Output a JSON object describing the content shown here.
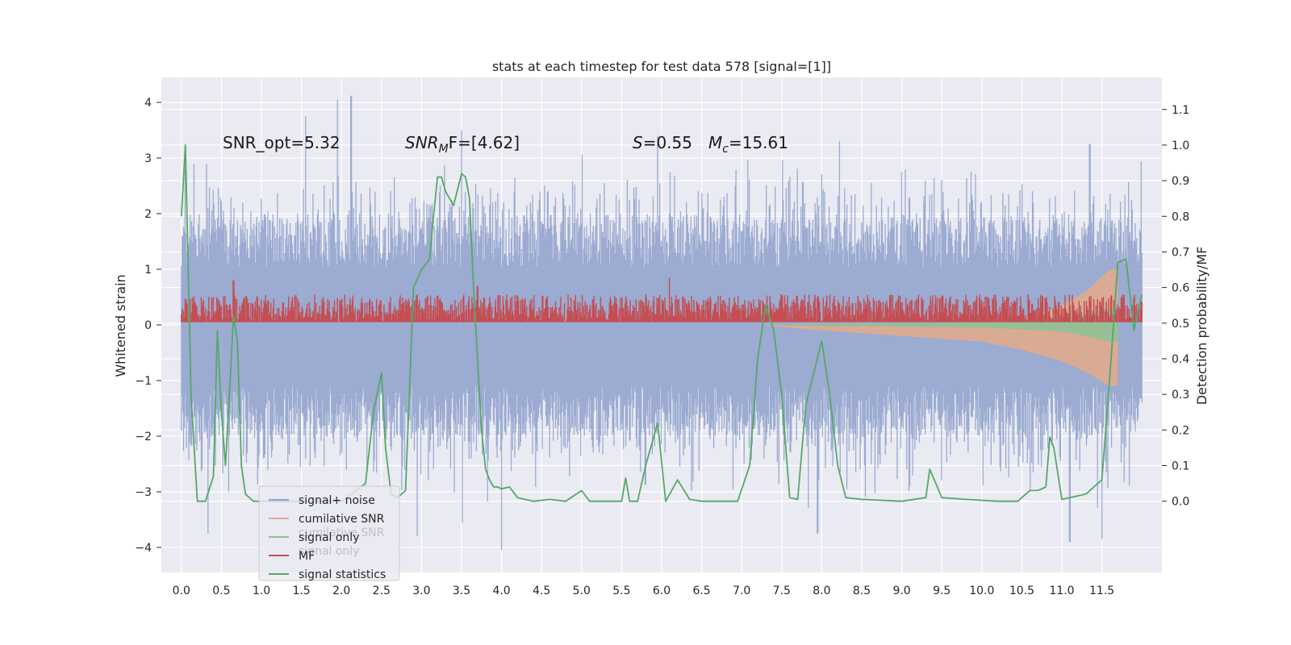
{
  "chart_data": {
    "type": "line",
    "title": "stats at each timestep for test data 578 [signal=[1]]",
    "xlabel": "",
    "ylabel": "Whitened strain",
    "ylabel_right": "Detection probability/MF",
    "xlim": [
      -0.25,
      12.25
    ],
    "ylim": [
      -4.45,
      4.45
    ],
    "ylim_right": [
      -0.2,
      1.19
    ],
    "x_ticks": [
      "0.0",
      "0.5",
      "1.0",
      "1.5",
      "2.0",
      "2.5",
      "3.0",
      "3.5",
      "4.0",
      "4.5",
      "5.0",
      "5.5",
      "6.0",
      "6.5",
      "7.0",
      "7.5",
      "8.0",
      "8.5",
      "9.0",
      "9.5",
      "10.0",
      "10.5",
      "11.0",
      "11.5"
    ],
    "y_ticks": [
      "4",
      "3",
      "2",
      "1",
      "0",
      "−1",
      "−2",
      "−3",
      "−4"
    ],
    "y_ticks_right": [
      "1.1",
      "1.0",
      "0.9",
      "0.8",
      "0.7",
      "0.6",
      "0.5",
      "0.4",
      "0.3",
      "0.2",
      "0.1",
      "0.0"
    ],
    "annotations": {
      "snr_opt": "SNR_opt=5.32",
      "snr_mf_main": "SNR",
      "snr_mf_sub": "M",
      "snr_mf_rest": "F=[4.62]",
      "s_main": "S",
      "s_rest": "=0.55",
      "mc_main": "M",
      "mc_sub": "c",
      "mc_rest": "=15.61"
    },
    "legend": {
      "placement": "lower-left",
      "entries": [
        {
          "label": "signal+ noise",
          "color": "#8da0cb"
        },
        {
          "label": "cumilative SNR",
          "color": "#e4a98a"
        },
        {
          "label": "signal only",
          "color": "#8fc196"
        },
        {
          "label": "MF",
          "color": "#c44e52"
        },
        {
          "label": "signal statistics",
          "color": "#55a868"
        }
      ],
      "ghost_labels": [
        "cumilative SNR",
        "signal only"
      ]
    },
    "series": [
      {
        "name": "signal+ noise",
        "color": "#8da0cb",
        "x_range": [
          0.0,
          12.0
        ],
        "typical_positive_envelope": 1.9,
        "typical_negative_envelope": -2.0,
        "peaks": [
          {
            "x": 1.95,
            "y": 4.05
          },
          {
            "x": 2.12,
            "y": 4.12
          },
          {
            "x": 1.55,
            "y": 3.75
          },
          {
            "x": 3.5,
            "y": 3.5
          },
          {
            "x": 5.95,
            "y": 3.4
          },
          {
            "x": 11.35,
            "y": 3.25
          },
          {
            "x": 0.33,
            "y": -3.75
          },
          {
            "x": 2.95,
            "y": -3.8
          },
          {
            "x": 4.0,
            "y": -4.05
          },
          {
            "x": 11.1,
            "y": -3.9
          },
          {
            "x": 11.5,
            "y": -3.85
          },
          {
            "x": 7.95,
            "y": -3.75
          }
        ]
      },
      {
        "name": "MF",
        "color": "#c44e52",
        "x_range": [
          0.0,
          12.0
        ],
        "typical_range": [
          0.05,
          0.55
        ],
        "peaks": [
          {
            "x": 0.65,
            "y": 0.8
          },
          {
            "x": 6.1,
            "y": 0.85
          },
          {
            "x": 3.7,
            "y": 0.7
          }
        ]
      },
      {
        "name": "signal only",
        "color": "#8fc196",
        "x": [
          7.2,
          8.0,
          9.0,
          10.0,
          10.5,
          11.0,
          11.3,
          11.6,
          11.7
        ],
        "y_upper": [
          0.0,
          0.02,
          0.03,
          0.05,
          0.08,
          0.12,
          0.2,
          0.3,
          0.3
        ],
        "y_lower": [
          0.0,
          -0.02,
          -0.03,
          -0.05,
          -0.08,
          -0.12,
          -0.2,
          -0.3,
          -0.3
        ]
      },
      {
        "name": "cumilative SNR",
        "color": "#e4a98a",
        "x": [
          7.2,
          8.0,
          9.0,
          10.0,
          10.5,
          11.0,
          11.3,
          11.6,
          11.7
        ],
        "y_upper": [
          0.0,
          0.0,
          0.0,
          0.02,
          0.1,
          0.35,
          0.6,
          1.0,
          1.0
        ],
        "y_lower": [
          0.0,
          -0.1,
          -0.2,
          -0.3,
          -0.45,
          -0.65,
          -0.85,
          -1.1,
          -1.1
        ]
      },
      {
        "name": "signal statistics",
        "color": "#55a868",
        "axis": "right",
        "x": [
          0.0,
          0.05,
          0.12,
          0.2,
          0.3,
          0.4,
          0.45,
          0.5,
          0.55,
          0.6,
          0.65,
          0.7,
          0.75,
          0.8,
          0.9,
          1.0,
          1.1,
          1.3,
          1.6,
          2.0,
          2.3,
          2.4,
          2.5,
          2.55,
          2.62,
          2.7,
          2.8,
          2.9,
          3.0,
          3.1,
          3.15,
          3.2,
          3.25,
          3.3,
          3.4,
          3.5,
          3.55,
          3.6,
          3.65,
          3.7,
          3.75,
          3.8,
          3.85,
          3.9,
          3.95,
          4.0,
          4.1,
          4.2,
          4.4,
          4.6,
          4.8,
          5.0,
          5.1,
          5.3,
          5.5,
          5.55,
          5.6,
          5.7,
          5.8,
          5.95,
          6.05,
          6.2,
          6.35,
          6.5,
          6.7,
          6.95,
          7.1,
          7.2,
          7.3,
          7.4,
          7.5,
          7.6,
          7.7,
          7.8,
          8.0,
          8.1,
          8.2,
          8.3,
          8.5,
          9.0,
          9.3,
          9.35,
          9.5,
          9.8,
          10.2,
          10.45,
          10.6,
          10.7,
          10.8,
          10.85,
          10.9,
          11.0,
          11.1,
          11.3,
          11.5,
          11.6,
          11.7,
          11.8,
          11.9,
          12.0
        ],
        "y": [
          0.8,
          1.0,
          0.3,
          0.0,
          0.0,
          0.07,
          0.48,
          0.25,
          0.1,
          0.3,
          0.52,
          0.45,
          0.1,
          0.02,
          0.0,
          0.0,
          0.0,
          0.0,
          0.0,
          0.0,
          0.05,
          0.25,
          0.36,
          0.15,
          0.02,
          0.01,
          0.03,
          0.6,
          0.65,
          0.68,
          0.8,
          0.91,
          0.91,
          0.87,
          0.83,
          0.92,
          0.91,
          0.85,
          0.6,
          0.4,
          0.2,
          0.09,
          0.06,
          0.04,
          0.04,
          0.035,
          0.04,
          0.01,
          0.0,
          0.005,
          0.0,
          0.03,
          0.0,
          0.0,
          0.0,
          0.065,
          0.0,
          0.0,
          0.1,
          0.22,
          0.0,
          0.06,
          0.005,
          0.0,
          0.0,
          0.0,
          0.1,
          0.4,
          0.55,
          0.48,
          0.3,
          0.01,
          0.005,
          0.27,
          0.45,
          0.3,
          0.1,
          0.01,
          0.005,
          0.0,
          0.01,
          0.09,
          0.01,
          0.005,
          0.0,
          0.0,
          0.03,
          0.03,
          0.04,
          0.18,
          0.15,
          0.005,
          0.01,
          0.02,
          0.06,
          0.35,
          0.67,
          0.68,
          0.48,
          0.58
        ]
      }
    ]
  }
}
